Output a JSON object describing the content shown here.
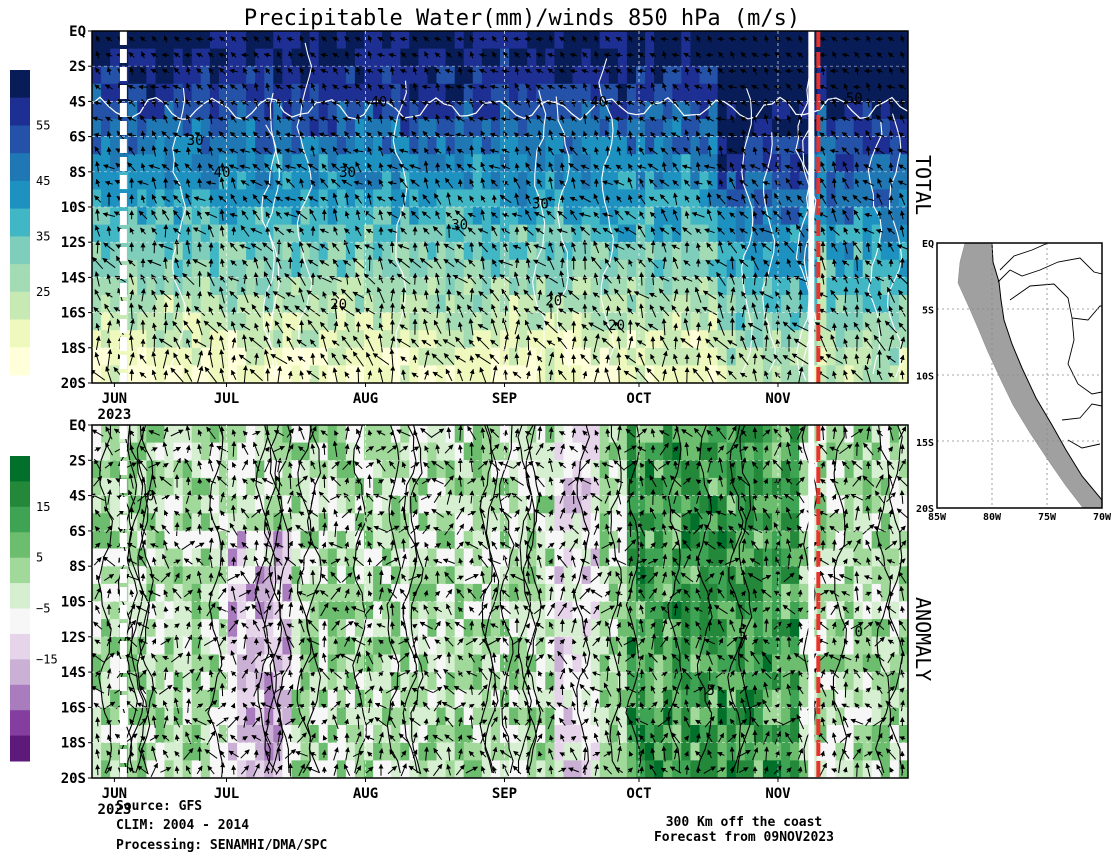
{
  "figure": {
    "title": "Precipitable Water(mm)/winds 850 hPa (m/s)",
    "source_label": "Source: GFS",
    "clim_label": "CLIM: 2004 - 2014",
    "processing_label": "Processing: SENAMHI/DMA/SPC",
    "location_label": "300 Km off the coast",
    "forecast_label": "Forecast from 09NOV2023"
  },
  "colors": {
    "forecast_line": "#e8322a",
    "gap_line": "#ffffff",
    "map_coast_band": "#a0a0a0"
  },
  "chart_data": [
    {
      "type": "heatmap",
      "name": "total-panel",
      "side_label": "TOTAL",
      "x_ticks": [
        "JUN",
        "JUL",
        "AUG",
        "SEP",
        "OCT",
        "NOV"
      ],
      "x_year": "2023",
      "x_range_days": [
        0,
        182
      ],
      "y_ticks": [
        "EQ",
        "2S",
        "4S",
        "6S",
        "8S",
        "10S",
        "12S",
        "14S",
        "16S",
        "18S",
        "20S"
      ],
      "y_range": [
        0,
        -20
      ],
      "contour_labels": [
        {
          "text": "40",
          "day": 64,
          "lat": -4
        },
        {
          "text": "40",
          "day": 113,
          "lat": -4
        },
        {
          "text": "50",
          "day": 170,
          "lat": -3.8
        },
        {
          "text": "30",
          "day": 23,
          "lat": -6.2
        },
        {
          "text": "40",
          "day": 29,
          "lat": -8
        },
        {
          "text": "30",
          "day": 57,
          "lat": -8
        },
        {
          "text": "30",
          "day": 100,
          "lat": -9.8
        },
        {
          "text": "30",
          "day": 82,
          "lat": -11
        },
        {
          "text": "20",
          "day": 55,
          "lat": -15.5
        },
        {
          "text": "20",
          "day": 103,
          "lat": -15.3
        },
        {
          "text": "20",
          "day": 117,
          "lat": -16.7
        }
      ],
      "colorbar": {
        "colors": [
          "#081d58",
          "#1e2f93",
          "#2352a8",
          "#1f78b4",
          "#1d91c0",
          "#41b6c4",
          "#7fcdbb",
          "#a3dcb4",
          "#c7e9b4",
          "#eff9bd",
          "#ffffd9"
        ],
        "labels": [
          "55",
          "45",
          "35",
          "25"
        ]
      },
      "forecast_start_day": 162,
      "data_gap_day": 7
    },
    {
      "type": "heatmap",
      "name": "anomaly-panel",
      "side_label": "ANOMALY",
      "x_ticks": [
        "JUN",
        "JUL",
        "AUG",
        "SEP",
        "OCT",
        "NOV"
      ],
      "x_year": "2023",
      "x_range_days": [
        0,
        182
      ],
      "y_ticks": [
        "EQ",
        "2S",
        "4S",
        "6S",
        "8S",
        "10S",
        "12S",
        "14S",
        "16S",
        "18S",
        "20S"
      ],
      "y_range": [
        0,
        -20
      ],
      "contour_labels": [
        {
          "text": "0",
          "day": 13,
          "lat": -4
        },
        {
          "text": "0",
          "day": 171,
          "lat": -11.7
        },
        {
          "text": "5",
          "day": 145,
          "lat": -11.8
        },
        {
          "text": "5",
          "day": 138,
          "lat": -15
        }
      ],
      "colorbar": {
        "colors": [
          "#00702a",
          "#23883a",
          "#3ea454",
          "#6cbd6e",
          "#a1d99b",
          "#d6efd1",
          "#f7f7f7",
          "#e6d5ea",
          "#cbb0d6",
          "#a97cbe",
          "#833ea0",
          "#5e1a7b"
        ],
        "labels": [
          "15",
          "5",
          "−5",
          "−15"
        ]
      },
      "forecast_start_day": 162,
      "data_gap_day": 7
    },
    {
      "type": "map",
      "name": "location-map",
      "x_ticks": [
        "85W",
        "80W",
        "75W",
        "70W"
      ],
      "y_ticks": [
        "EQ",
        "5S",
        "10S",
        "15S",
        "20S"
      ],
      "lon_range": [
        -85,
        -70
      ],
      "lat_range": [
        0,
        -20
      ]
    }
  ]
}
